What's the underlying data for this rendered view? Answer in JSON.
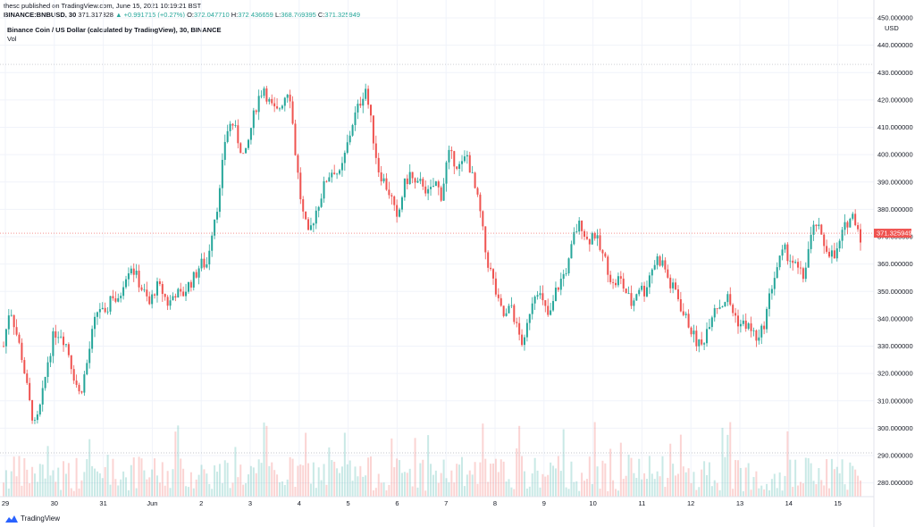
{
  "header": {
    "published_line": "thesc published on TradingView.com, June 15, 2021 10:19:21 BST",
    "symbol_line": "BINANCE:BNBUSD, 30",
    "last_price": "371.317328",
    "change": "▲ +0.991715 (+0.27%)",
    "open_label": "O:",
    "open": "372.047710",
    "high_label": "H:",
    "high": "372.436659",
    "low_label": "L:",
    "low": "368.769395",
    "close_label": "C:",
    "close": "371.325949"
  },
  "legend": {
    "title": "Binance Coin / US Dollar (calculated by TradingView), 30, BINANCE",
    "vol_label": "Vol"
  },
  "footer": {
    "brand": "TradingView"
  },
  "colors": {
    "up": "#26a69a",
    "down": "#ef5350",
    "grid": "#f0f3fa",
    "text": "#131722",
    "price_tag": "#ef5350"
  },
  "chart_data": {
    "type": "candlestick",
    "currency_label": "USD",
    "last_price_tag": "371.325949",
    "ylim": [
      275,
      450
    ],
    "y_ticks": [
      "280.000000",
      "290.000000",
      "300.000000",
      "310.000000",
      "320.000000",
      "330.000000",
      "340.000000",
      "350.000000",
      "360.000000",
      "370.000000",
      "380.000000",
      "390.000000",
      "400.000000",
      "410.000000",
      "420.000000",
      "430.000000",
      "440.000000",
      "450.000000"
    ],
    "x_ticks": [
      "29",
      "30",
      "31",
      "Jun",
      "2",
      "3",
      "4",
      "5",
      "6",
      "7",
      "8",
      "9",
      "10",
      "11",
      "12",
      "13",
      "14",
      "15"
    ],
    "reference_lines": [
      433,
      371.3,
      291
    ],
    "close_path": [
      [
        0,
        330
      ],
      [
        1.5,
        345
      ],
      [
        3,
        335
      ],
      [
        4.5,
        325
      ],
      [
        6,
        310
      ],
      [
        7.5,
        300
      ],
      [
        9,
        310
      ],
      [
        10.5,
        325
      ],
      [
        12,
        335
      ],
      [
        13.5,
        335
      ],
      [
        15,
        330
      ],
      [
        16.5,
        320
      ],
      [
        18,
        312
      ],
      [
        19.5,
        322
      ],
      [
        21,
        335
      ],
      [
        22.5,
        345
      ],
      [
        24,
        340
      ],
      [
        25.5,
        350
      ],
      [
        27,
        345
      ],
      [
        28.5,
        355
      ],
      [
        30,
        360
      ],
      [
        31.5,
        355
      ],
      [
        33,
        350
      ],
      [
        34.5,
        345
      ],
      [
        36,
        352
      ],
      [
        37.5,
        350
      ],
      [
        39,
        345
      ],
      [
        40.5,
        350
      ],
      [
        42,
        348
      ],
      [
        43.5,
        352
      ],
      [
        45,
        355
      ],
      [
        46.5,
        360
      ],
      [
        48,
        360
      ],
      [
        49.5,
        375
      ],
      [
        51,
        385
      ],
      [
        52.5,
        408
      ],
      [
        54,
        412
      ],
      [
        55.5,
        405
      ],
      [
        57,
        398
      ],
      [
        58.5,
        410
      ],
      [
        60,
        420
      ],
      [
        61.5,
        425
      ],
      [
        63,
        418
      ],
      [
        64.5,
        415
      ],
      [
        66,
        420
      ],
      [
        67.5,
        425
      ],
      [
        69,
        400
      ],
      [
        70.5,
        380
      ],
      [
        72,
        370
      ],
      [
        73.5,
        378
      ],
      [
        75,
        385
      ],
      [
        76.5,
        392
      ],
      [
        78,
        395
      ],
      [
        79.5,
        392
      ],
      [
        81,
        402
      ],
      [
        82.5,
        412
      ],
      [
        84,
        418
      ],
      [
        85.5,
        425
      ],
      [
        87,
        410
      ],
      [
        88.5,
        395
      ],
      [
        90,
        390
      ],
      [
        91.5,
        385
      ],
      [
        93,
        375
      ],
      [
        94.5,
        388
      ],
      [
        96,
        393
      ],
      [
        97.5,
        388
      ],
      [
        99,
        390
      ],
      [
        100.5,
        385
      ],
      [
        102,
        390
      ],
      [
        103.5,
        385
      ],
      [
        105,
        400
      ],
      [
        106.5,
        398
      ],
      [
        108,
        395
      ],
      [
        109.5,
        400
      ],
      [
        111,
        390
      ],
      [
        112.5,
        380
      ],
      [
        114,
        363
      ],
      [
        115.5,
        355
      ],
      [
        117,
        345
      ],
      [
        118.5,
        340
      ],
      [
        120,
        345
      ],
      [
        121.5,
        335
      ],
      [
        123,
        330
      ],
      [
        124.5,
        345
      ],
      [
        126,
        352
      ],
      [
        127.5,
        345
      ],
      [
        129,
        340
      ],
      [
        130.5,
        350
      ],
      [
        132,
        355
      ],
      [
        133.5,
        360
      ],
      [
        135,
        372
      ],
      [
        136.5,
        375
      ],
      [
        138,
        368
      ],
      [
        139.5,
        372
      ],
      [
        141,
        365
      ],
      [
        142.5,
        360
      ],
      [
        144,
        352
      ],
      [
        145.5,
        355
      ],
      [
        147,
        350
      ],
      [
        148.5,
        345
      ],
      [
        150,
        352
      ],
      [
        151.5,
        350
      ],
      [
        153,
        358
      ],
      [
        154.5,
        362
      ],
      [
        156,
        360
      ],
      [
        157.5,
        352
      ],
      [
        159,
        350
      ],
      [
        160.5,
        342
      ],
      [
        162,
        338
      ],
      [
        163.5,
        332
      ],
      [
        165,
        330
      ],
      [
        166.5,
        338
      ],
      [
        168,
        345
      ],
      [
        169.5,
        345
      ],
      [
        171,
        348
      ],
      [
        172.5,
        342
      ],
      [
        174,
        338
      ],
      [
        175.5,
        338
      ],
      [
        177,
        335
      ],
      [
        178.5,
        332
      ],
      [
        180,
        340
      ],
      [
        181.5,
        352
      ],
      [
        183,
        360
      ],
      [
        184.5,
        365
      ],
      [
        186,
        362
      ],
      [
        187.5,
        358
      ],
      [
        189,
        355
      ],
      [
        190.5,
        368
      ],
      [
        192,
        375
      ],
      [
        193.5,
        368
      ],
      [
        195,
        365
      ],
      [
        196.5,
        362
      ],
      [
        198,
        370
      ],
      [
        199.5,
        376
      ],
      [
        201,
        378
      ],
      [
        202.5,
        370
      ]
    ],
    "volume_note": "volume histogram bars along the bottom, colored by candle direction"
  }
}
